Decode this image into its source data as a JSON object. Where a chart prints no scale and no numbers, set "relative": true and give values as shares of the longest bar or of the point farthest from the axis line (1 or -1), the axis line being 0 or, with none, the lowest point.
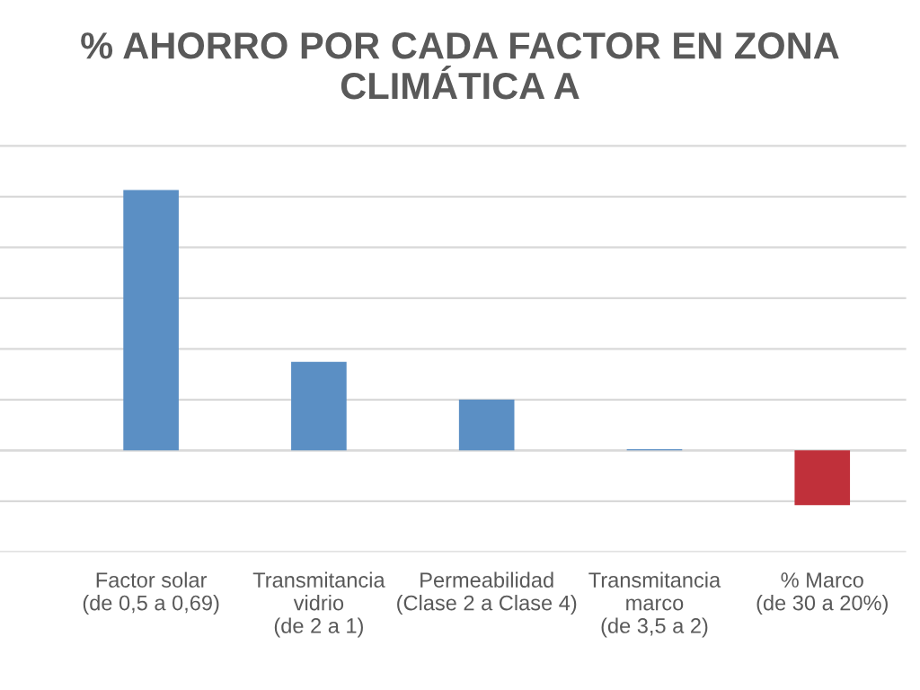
{
  "chart_data": {
    "type": "bar",
    "title": "% AHORRO POR CADA FACTOR EN ZONA CLIMÁTICA A",
    "categories": [
      "Factor solar\n(de 0,5 a 0,69)",
      "Transmitancia\nvidrio\n(de 2 a 1)",
      "Permeabilidad\n(Clase 2 a Clase 4)",
      "Transmitancia\nmarco\n(de 3,5 a 2)",
      "% Marco\n(de 30 a 20%)"
    ],
    "values": [
      1,
      0.34,
      0.195,
      0.005,
      -0.21
    ],
    "colors": [
      "#5b8fc4",
      "#5b8fc4",
      "#5b8fc4",
      "#5b8fc4",
      "#c0303a"
    ],
    "relative": true,
    "grid": "y",
    "legend": false
  }
}
